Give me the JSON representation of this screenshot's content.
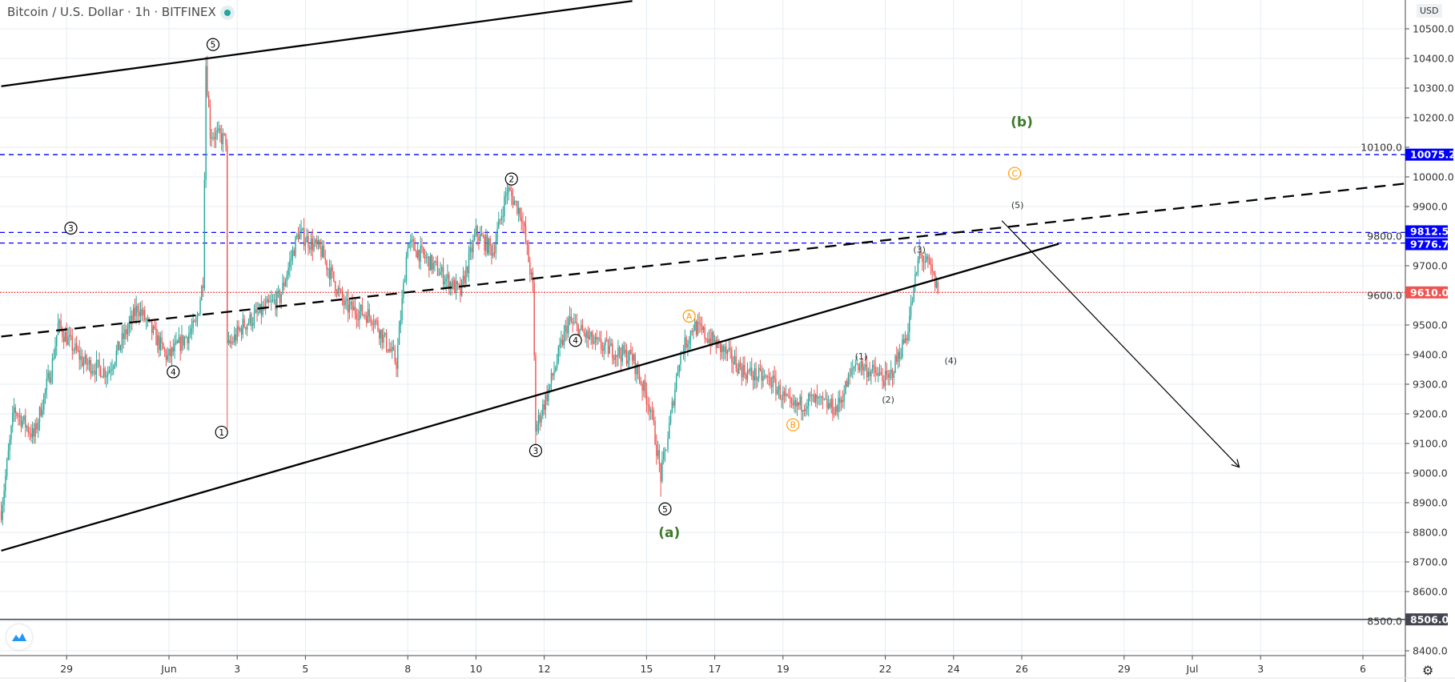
{
  "header": {
    "title": "Bitcoin / U.S. Dollar · 1h · BITFINEX",
    "status": "market-open-dot",
    "currency": "USD"
  },
  "colors": {
    "up": "#26a69a",
    "down": "#ef5350",
    "level_blue": "#0000ff",
    "current_price": "#ef5350",
    "support": "#434651",
    "wave_green": "#3d7a2b",
    "wave_orange": "#ff9800"
  },
  "chart_data": {
    "type": "candlestick",
    "symbol": "BTCUSD",
    "interval": "1h",
    "time_unit": "hours from Jun 1 00:00",
    "ylim": [
      8400,
      10500
    ],
    "price_ticks": [
      "8400.0",
      "8500.0",
      "8600.0",
      "8700.0",
      "8800.0",
      "8900.0",
      "9000.0",
      "9100.0",
      "9200.0",
      "9300.0",
      "9400.0",
      "9500.0",
      "9600.0",
      "9700.0",
      "9800.0",
      "9900.0",
      "10000.0",
      "10100.0",
      "10200.0",
      "10300.0",
      "10400.0",
      "10500.0"
    ],
    "date_ticks": [
      {
        "label": "29",
        "day": -3
      },
      {
        "label": "Jun",
        "day": 0
      },
      {
        "label": "3",
        "day": 2
      },
      {
        "label": "5",
        "day": 4
      },
      {
        "label": "8",
        "day": 7
      },
      {
        "label": "10",
        "day": 9
      },
      {
        "label": "12",
        "day": 11
      },
      {
        "label": "15",
        "day": 14
      },
      {
        "label": "17",
        "day": 16
      },
      {
        "label": "19",
        "day": 18
      },
      {
        "label": "22",
        "day": 21
      },
      {
        "label": "24",
        "day": 23
      },
      {
        "label": "26",
        "day": 25
      },
      {
        "label": "29",
        "day": 28
      },
      {
        "label": "Jul",
        "day": 30
      },
      {
        "label": "3",
        "day": 32
      },
      {
        "label": "6",
        "day": 35
      }
    ],
    "price_path": [
      [
        -118,
        8872
      ],
      [
        -109,
        9217
      ],
      [
        -95,
        9123
      ],
      [
        -82,
        9373
      ],
      [
        -78,
        9498
      ],
      [
        -60,
        9373
      ],
      [
        -43,
        9342
      ],
      [
        -22,
        9561
      ],
      [
        -1,
        9389
      ],
      [
        19,
        9498
      ],
      [
        24,
        9655
      ],
      [
        26,
        10380
      ],
      [
        29,
        10150
      ],
      [
        40,
        10124
      ],
      [
        41,
        9420
      ],
      [
        52,
        9498
      ],
      [
        78,
        9592
      ],
      [
        91,
        9811
      ],
      [
        107,
        9749
      ],
      [
        124,
        9561
      ],
      [
        143,
        9530
      ],
      [
        160,
        9373
      ],
      [
        168,
        9780
      ],
      [
        189,
        9686
      ],
      [
        205,
        9608
      ],
      [
        216,
        9811
      ],
      [
        228,
        9749
      ],
      [
        238,
        9960
      ],
      [
        248,
        9874
      ],
      [
        256,
        9624
      ],
      [
        258,
        9150
      ],
      [
        267,
        9279
      ],
      [
        281,
        9514
      ],
      [
        300,
        9436
      ],
      [
        326,
        9389
      ],
      [
        339,
        9217
      ],
      [
        346,
        8990
      ],
      [
        351,
        9123
      ],
      [
        359,
        9389
      ],
      [
        369,
        9498
      ],
      [
        385,
        9436
      ],
      [
        405,
        9342
      ],
      [
        424,
        9311
      ],
      [
        438,
        9217
      ],
      [
        451,
        9248
      ],
      [
        470,
        9217
      ],
      [
        483,
        9373
      ],
      [
        506,
        9311
      ],
      [
        519,
        9467
      ],
      [
        528,
        9740
      ],
      [
        536,
        9686
      ],
      [
        541,
        9610
      ]
    ],
    "extreme_wicks": [
      [
        26,
        10406,
        "high"
      ],
      [
        41,
        9150,
        "low"
      ],
      [
        258,
        9090,
        "low"
      ],
      [
        346,
        8920,
        "low"
      ],
      [
        238,
        9990,
        "high"
      ],
      [
        528,
        9790,
        "high"
      ]
    ],
    "horizontal_levels": [
      {
        "price": 10075.2,
        "label": "10075.2",
        "style": "dashed",
        "color": "#0000ff"
      },
      {
        "price": 9812.5,
        "label": "9812.5",
        "style": "dashed",
        "color": "#0000ff"
      },
      {
        "price": 9776.7,
        "label": "9776.7",
        "style": "dashed",
        "color": "#0000ff"
      },
      {
        "price": 9610.0,
        "label": "9610.0",
        "style": "dotted",
        "color": "#ef5350"
      },
      {
        "price": 8506.0,
        "label": "8506.0",
        "style": "solid",
        "color": "#434651"
      }
    ],
    "trendlines": [
      {
        "name": "upper-channel-line",
        "from": [
          -118,
          10306
        ],
        "to": [
          326,
          10594
        ],
        "style": "solid"
      },
      {
        "name": "lower-channel-line",
        "from": [
          -118,
          8738
        ],
        "to": [
          626,
          9774
        ],
        "style": "solid"
      },
      {
        "name": "dashed-trendline",
        "from": [
          -118,
          9461
        ],
        "to": [
          869,
          9977
        ],
        "style": "dashed"
      },
      {
        "name": "projection-arrow",
        "from": [
          586,
          9852
        ],
        "to": [
          753,
          9020
        ],
        "style": "arrow"
      }
    ],
    "wave_labels": [
      {
        "text": "5",
        "kind": "circled",
        "t": 31,
        "p": 10447
      },
      {
        "text": "3",
        "kind": "circled",
        "t": -69,
        "p": 9827
      },
      {
        "text": "4",
        "kind": "circled",
        "t": 3,
        "p": 9342
      },
      {
        "text": "1",
        "kind": "circled",
        "t": 37,
        "p": 9138
      },
      {
        "text": "2",
        "kind": "circled",
        "t": 241,
        "p": 9993
      },
      {
        "text": "3",
        "kind": "circled",
        "t": 258,
        "p": 9076
      },
      {
        "text": "4",
        "kind": "circled",
        "t": 286,
        "p": 9448
      },
      {
        "text": "5",
        "kind": "circled",
        "t": 349,
        "p": 8879
      },
      {
        "text": "(a)",
        "kind": "green",
        "t": 352,
        "p": 8800
      },
      {
        "text": "(b)",
        "kind": "green",
        "t": 600,
        "p": 10187
      },
      {
        "text": "A",
        "kind": "orange",
        "t": 366,
        "p": 9530
      },
      {
        "text": "B",
        "kind": "orange",
        "t": 439,
        "p": 9163
      },
      {
        "text": "C",
        "kind": "orange",
        "t": 595,
        "p": 10012
      },
      {
        "text": "(1)",
        "kind": "minor",
        "t": 487,
        "p": 9395
      },
      {
        "text": "(2)",
        "kind": "minor",
        "t": 506,
        "p": 9248
      },
      {
        "text": "(3)",
        "kind": "minor",
        "t": 528,
        "p": 9755
      },
      {
        "text": "(4)",
        "kind": "minor",
        "t": 550,
        "p": 9380
      },
      {
        "text": "(5)",
        "kind": "minor",
        "t": 597,
        "p": 9905
      }
    ]
  }
}
